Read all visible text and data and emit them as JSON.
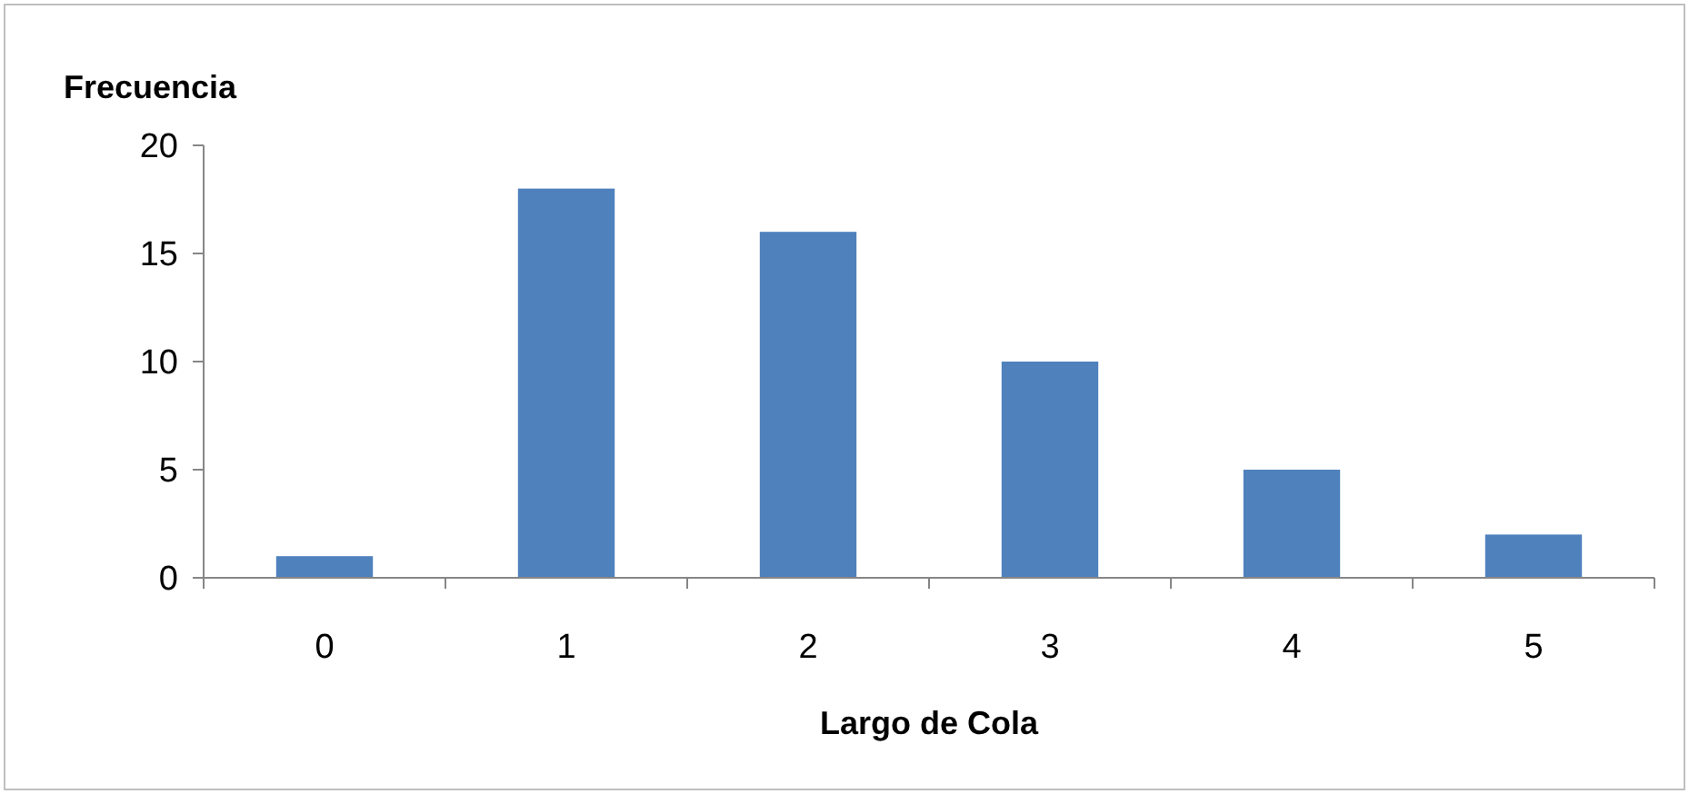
{
  "chart_data": {
    "type": "bar",
    "ylabel": "Frecuencia",
    "xlabel": "Largo de Cola",
    "categories": [
      "0",
      "1",
      "2",
      "3",
      "4",
      "5"
    ],
    "values": [
      1,
      18,
      16,
      10,
      5,
      2
    ],
    "color": "#4f81bd",
    "ylim": [
      0,
      20
    ],
    "yticks": [
      0,
      5,
      10,
      15,
      20
    ],
    "grid": false
  }
}
